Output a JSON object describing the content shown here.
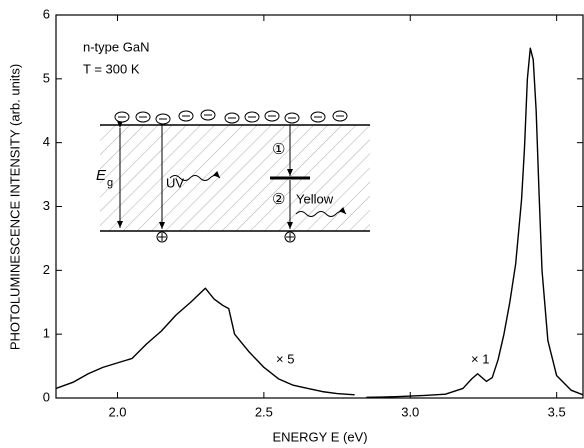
{
  "chart_data": {
    "type": "line",
    "x_label": "ENERGY E (eV)",
    "y_label": "PHOTOLUMINESCENCE INTENSITY (arb. units)",
    "annotations": {
      "sample": "n-type GaN",
      "temperature": "T = 300 K",
      "scale_yellow": "× 5",
      "scale_edge": "× 1",
      "gap_symbol": "E",
      "gap_subscript": "g",
      "uv": "UV",
      "yellow": "Yellow",
      "step1": "①",
      "step2": "②"
    },
    "x": [
      1.79,
      1.85,
      1.9,
      1.95,
      2.0,
      2.05,
      2.1,
      2.15,
      2.2,
      2.25,
      2.3,
      2.33,
      2.36,
      2.38,
      2.4,
      2.45,
      2.5,
      2.55,
      2.6,
      2.65,
      2.7,
      2.75,
      2.81,
      2.83,
      2.85,
      2.95,
      3.05,
      3.12,
      3.18,
      3.21,
      3.23,
      3.26,
      3.28,
      3.3,
      3.32,
      3.34,
      3.36,
      3.37,
      3.38,
      3.39,
      3.4,
      3.41,
      3.42,
      3.43,
      3.44,
      3.45,
      3.47,
      3.5,
      3.55,
      3.59
    ],
    "values": [
      0.15,
      0.25,
      0.38,
      0.48,
      0.55,
      0.62,
      0.85,
      1.05,
      1.3,
      1.5,
      1.72,
      1.55,
      1.45,
      1.4,
      1.0,
      0.72,
      0.48,
      0.3,
      0.2,
      0.15,
      0.1,
      0.07,
      0.05,
      null,
      0.01,
      0.02,
      0.04,
      0.06,
      0.15,
      0.3,
      0.38,
      0.26,
      0.32,
      0.6,
      1.0,
      1.5,
      2.1,
      2.6,
      3.1,
      3.9,
      5.0,
      5.48,
      5.3,
      4.5,
      3.2,
      2.0,
      0.9,
      0.35,
      0.12,
      0.05
    ],
    "color": "#000000",
    "xlim": [
      1.79,
      3.59
    ],
    "ylim": [
      0,
      6
    ],
    "xticks": [
      {
        "value": 2,
        "label": "2.0"
      },
      2.5,
      {
        "value": 3,
        "label": "3.0"
      },
      3.5
    ],
    "yticks": [
      0,
      1,
      2,
      3,
      4,
      5,
      6
    ]
  }
}
